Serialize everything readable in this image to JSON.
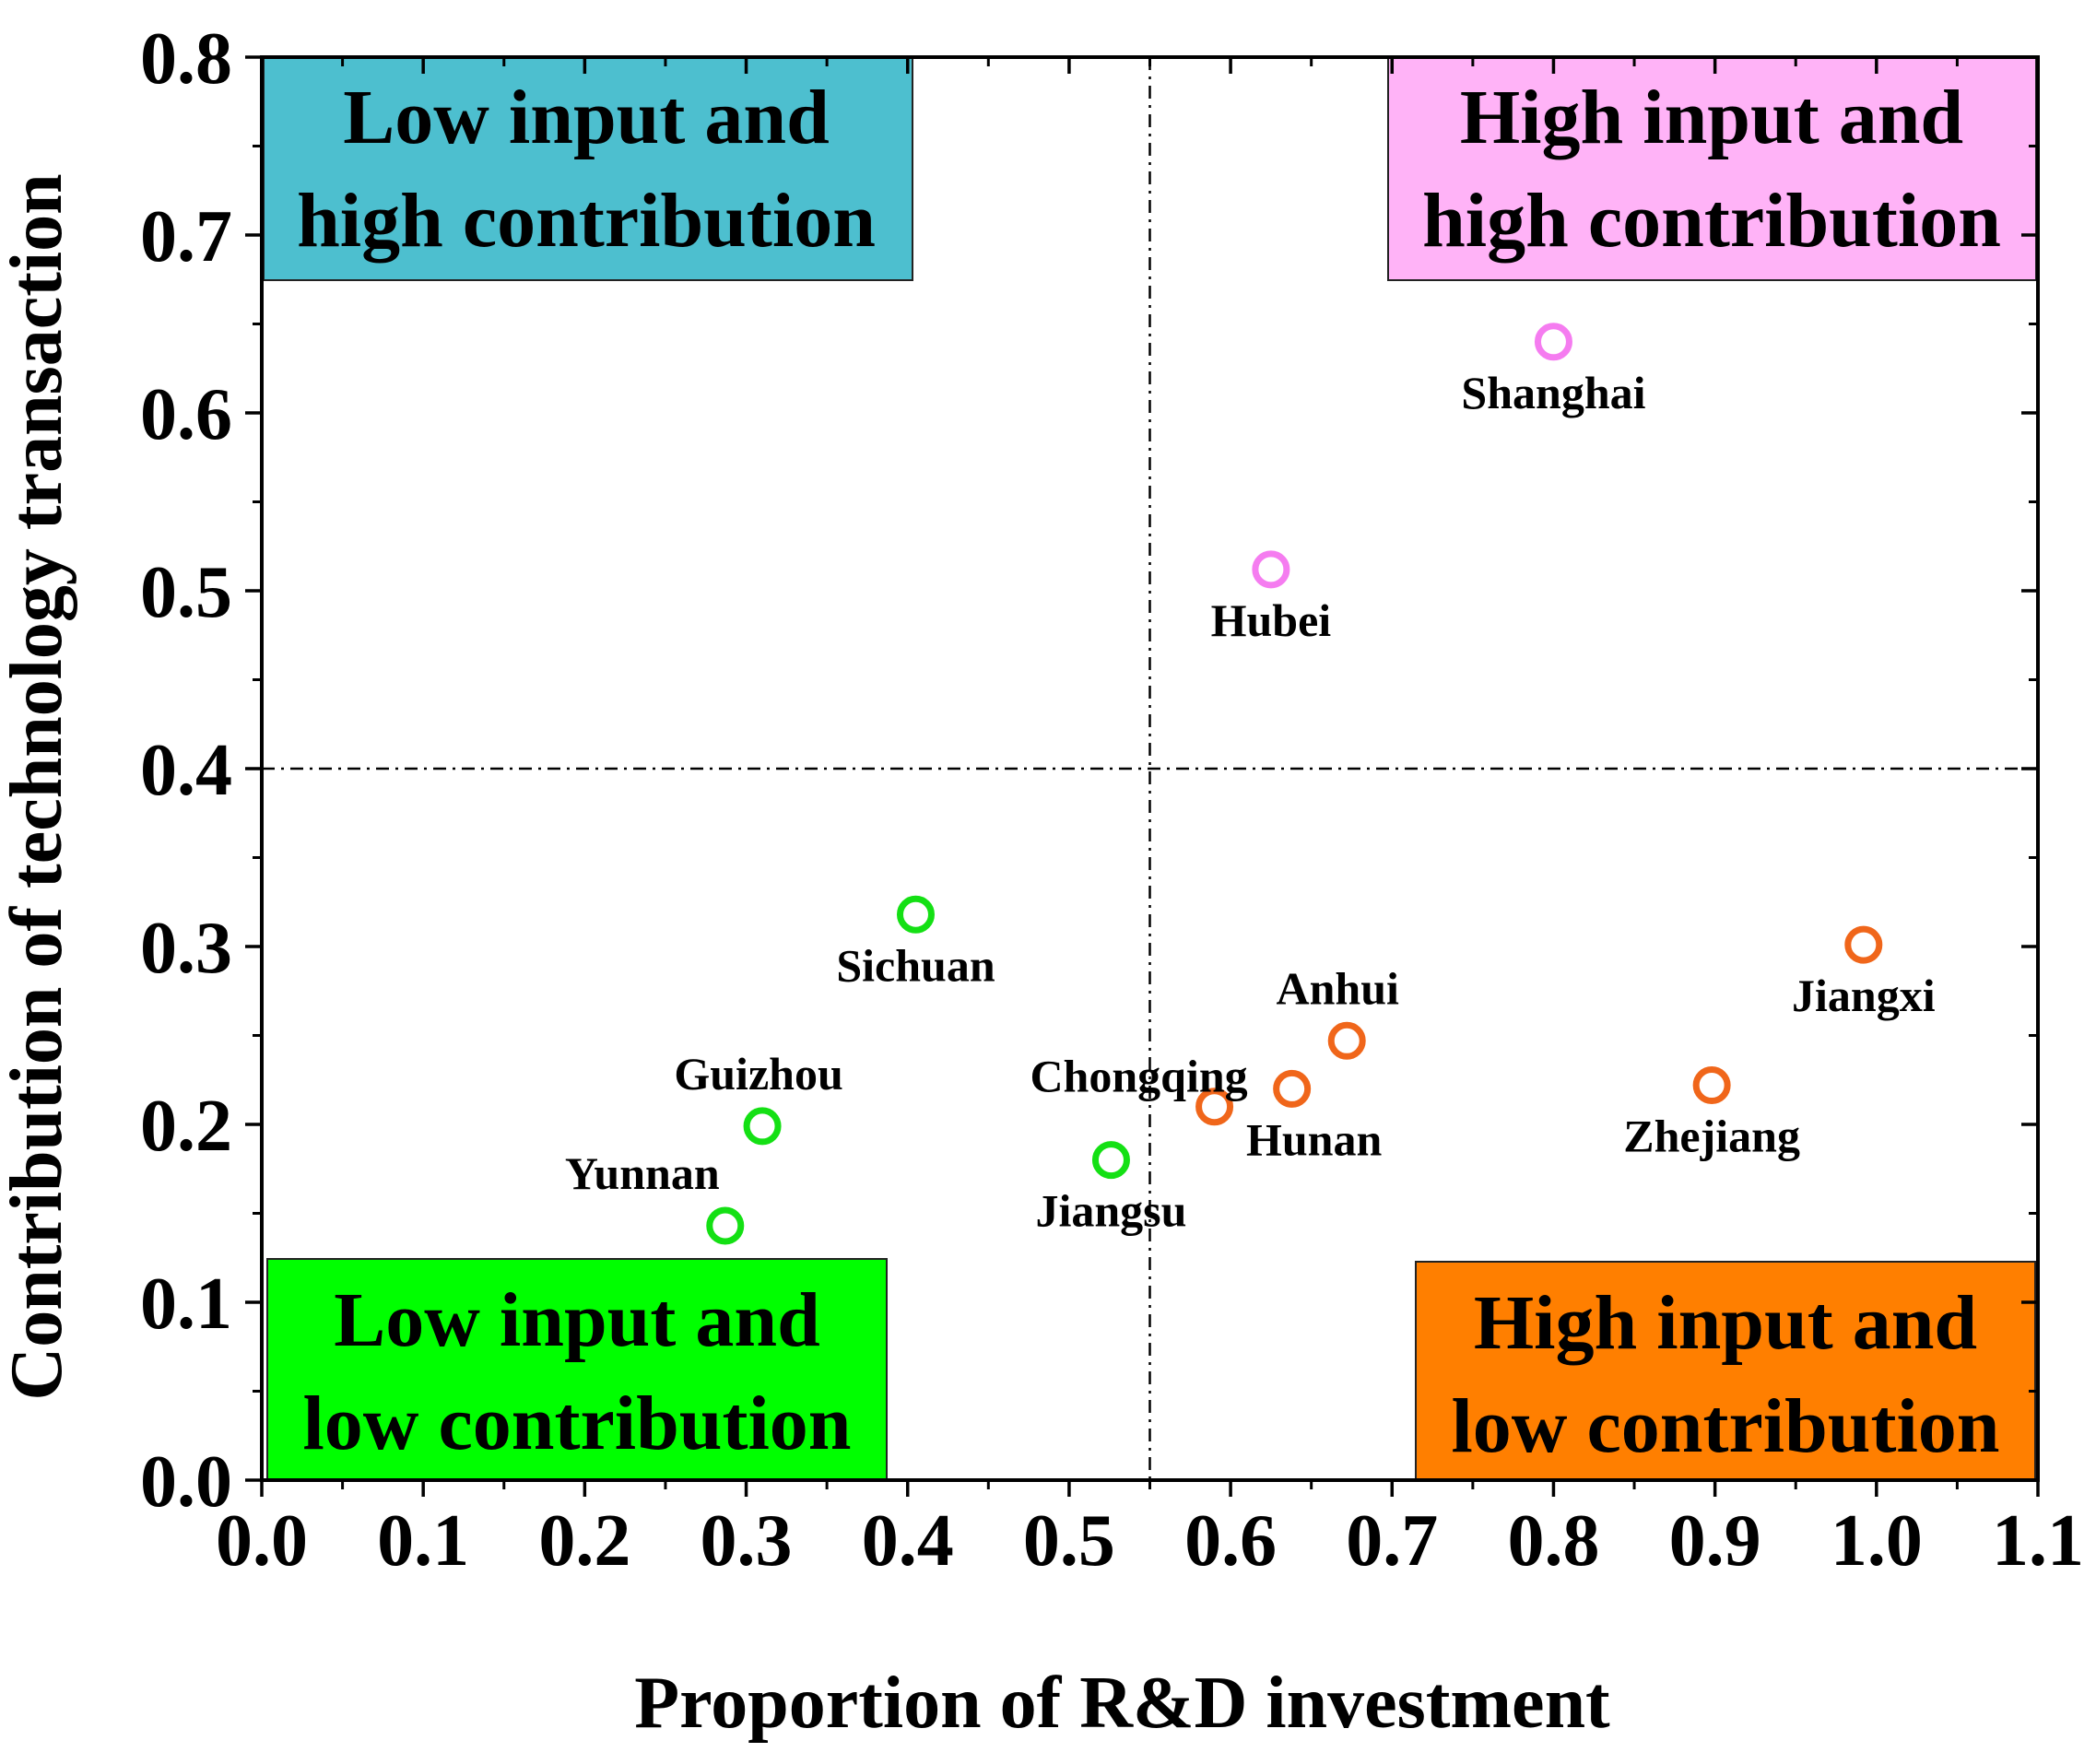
{
  "chart_data": {
    "type": "scatter",
    "xlabel": "Proportion of R&D investment",
    "ylabel": "Contribution of technology transaction",
    "xlim": [
      0.0,
      1.1
    ],
    "ylim": [
      0.0,
      0.8
    ],
    "xticks": [
      "0.0",
      "0.1",
      "0.2",
      "0.3",
      "0.4",
      "0.5",
      "0.6",
      "0.7",
      "0.8",
      "0.9",
      "1.0",
      "1.1"
    ],
    "yticks": [
      "0.0",
      "0.1",
      "0.2",
      "0.3",
      "0.4",
      "0.5",
      "0.6",
      "0.7",
      "0.8"
    ],
    "threshold_x": 0.55,
    "threshold_y": 0.4,
    "quadrants": [
      {
        "id": "lh",
        "line1": "Low input and",
        "line2": "high contribution",
        "color": "#4dbfcf",
        "position": "top-left"
      },
      {
        "id": "hh",
        "line1": "High input and",
        "line2": "high contribution",
        "color": "#ffb3f7",
        "position": "top-right"
      },
      {
        "id": "ll",
        "line1": "Low input and",
        "line2": "low contribution",
        "color": "#00ff00",
        "position": "bottom-left"
      },
      {
        "id": "hl",
        "line1": "High input and",
        "line2": "low contribution",
        "color": "#ff7f00",
        "position": "bottom-right"
      }
    ],
    "series": [
      {
        "name": "High input and high contribution",
        "color": "#f57cf0",
        "points": [
          {
            "label": "Shanghai",
            "x": 0.8,
            "y": 0.64
          },
          {
            "label": "Hubei",
            "x": 0.625,
            "y": 0.512
          }
        ]
      },
      {
        "name": "Low input and low contribution",
        "color": "#14e014",
        "points": [
          {
            "label": "Sichuan",
            "x": 0.405,
            "y": 0.318
          },
          {
            "label": "Guizhou",
            "x": 0.31,
            "y": 0.199
          },
          {
            "label": "Yunnan",
            "x": 0.287,
            "y": 0.143
          },
          {
            "label": "Jiangsu",
            "x": 0.526,
            "y": 0.18
          }
        ]
      },
      {
        "name": "High input and low contribution",
        "color": "#f0661a",
        "points": [
          {
            "label": "Jiangxi",
            "x": 0.992,
            "y": 0.301
          },
          {
            "label": "Anhui",
            "x": 0.672,
            "y": 0.247
          },
          {
            "label": "Hunan",
            "x": 0.638,
            "y": 0.22
          },
          {
            "label": "Chongqing",
            "x": 0.59,
            "y": 0.21
          },
          {
            "label": "Zhejiang",
            "x": 0.898,
            "y": 0.222
          }
        ]
      }
    ]
  }
}
